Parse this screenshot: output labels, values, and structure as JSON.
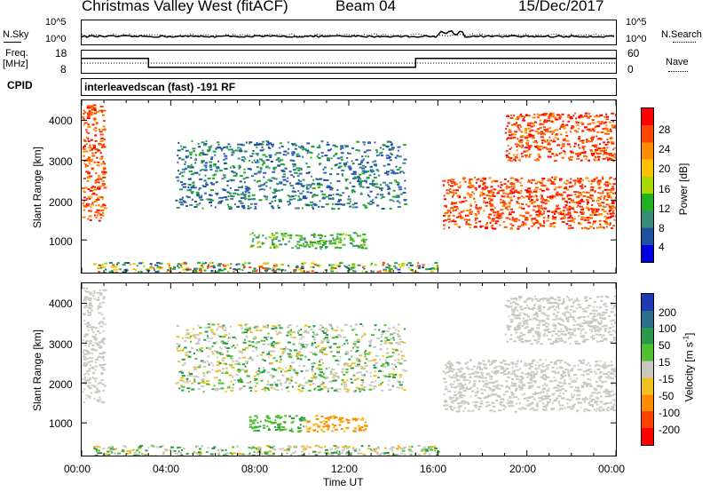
{
  "header": {
    "station": "Christmas Valley West (fitACF)",
    "beam": "Beam 04",
    "date": "15/Dec/2017"
  },
  "noise_panel": {
    "left_label": "N.Sky",
    "right_label": "N.Search",
    "tick_top": "10^5",
    "tick_bottom": "10^0"
  },
  "freq_panel": {
    "left_label_line1": "Freq.",
    "left_label_line2": "[MHz]",
    "right_label": "Nave",
    "left_ticks": [
      "18",
      "8"
    ],
    "right_ticks": [
      "60",
      "0"
    ],
    "freq_steps_mhz": [
      {
        "t": 0.0,
        "v": 14.5
      },
      {
        "t": 3.0,
        "v": 14.5
      },
      {
        "t": 3.0,
        "v": 10.5
      },
      {
        "t": 15.0,
        "v": 10.5
      },
      {
        "t": 15.0,
        "v": 14.5
      },
      {
        "t": 24.0,
        "v": 14.5
      }
    ]
  },
  "cpid": {
    "label": "CPID",
    "text": "interleavedscan (fast) -191 RF"
  },
  "power_colorbar": {
    "label": "Power [dB]",
    "ticks": [
      "28",
      "24",
      "20",
      "16",
      "12",
      "8",
      "4"
    ],
    "colors": [
      "#ff0000",
      "#ff4500",
      "#ff8c00",
      "#ffc000",
      "#a8d800",
      "#20b020",
      "#3a8a78",
      "#2050a0",
      "#0000e0"
    ]
  },
  "velocity_colorbar": {
    "label_main": "Velocity [m s",
    "label_sup": "-1",
    "label_end": "]",
    "ticks": [
      "200",
      "100",
      "50",
      "15",
      "-15",
      "-50",
      "-100",
      "-200"
    ],
    "colors": [
      "#1e3ab4",
      "#2d6e8c",
      "#2a9a4a",
      "#50c030",
      "#c8c8c0",
      "#f0c020",
      "#ff8c00",
      "#ff4000",
      "#ff0000"
    ]
  },
  "x_axis": {
    "label": "Time UT",
    "ticks": [
      "00:00",
      "04:00",
      "08:00",
      "12:00",
      "16:00",
      "20:00",
      "00:00"
    ]
  },
  "y_axis": {
    "label": "Slant Range [km]",
    "ticks": [
      "1000",
      "2000",
      "3000",
      "4000"
    ]
  },
  "chart_data": [
    {
      "type": "heatmap",
      "title": "Power",
      "xlabel": "Time UT",
      "ylabel": "Slant Range [km]",
      "xlim": [
        0,
        24
      ],
      "ylim": [
        180,
        4500
      ],
      "regions": [
        {
          "t0": 0.0,
          "t1": 1.0,
          "r0": 1500,
          "r1": 4400,
          "level": "high"
        },
        {
          "t0": 4.2,
          "t1": 14.5,
          "r0": 1800,
          "r1": 3500,
          "level": "low"
        },
        {
          "t0": 7.5,
          "t1": 12.8,
          "r0": 800,
          "r1": 1200,
          "level": "mid"
        },
        {
          "t0": 0.5,
          "t1": 16.0,
          "r0": 180,
          "r1": 450,
          "level": "mixed"
        },
        {
          "t0": 16.2,
          "t1": 24.0,
          "r0": 1300,
          "r1": 2600,
          "level": "high"
        },
        {
          "t0": 19.0,
          "t1": 24.0,
          "r0": 3000,
          "r1": 4200,
          "level": "high"
        }
      ]
    },
    {
      "type": "heatmap",
      "title": "Velocity",
      "xlabel": "Time UT",
      "ylabel": "Slant Range [km]",
      "xlim": [
        0,
        24
      ],
      "ylim": [
        180,
        4500
      ],
      "regions": [
        {
          "t0": 0.0,
          "t1": 1.0,
          "r0": 1500,
          "r1": 4400,
          "level": "ground"
        },
        {
          "t0": 4.2,
          "t1": 14.5,
          "r0": 1800,
          "r1": 3500,
          "level": "mixed"
        },
        {
          "t0": 7.5,
          "t1": 10.0,
          "r0": 800,
          "r1": 1200,
          "level": "positive"
        },
        {
          "t0": 10.0,
          "t1": 12.8,
          "r0": 800,
          "r1": 1200,
          "level": "negative"
        },
        {
          "t0": 0.5,
          "t1": 16.0,
          "r0": 180,
          "r1": 450,
          "level": "mixed"
        },
        {
          "t0": 16.2,
          "t1": 24.0,
          "r0": 1300,
          "r1": 2600,
          "level": "ground"
        },
        {
          "t0": 19.0,
          "t1": 24.0,
          "r0": 3000,
          "r1": 4200,
          "level": "ground"
        }
      ]
    }
  ]
}
